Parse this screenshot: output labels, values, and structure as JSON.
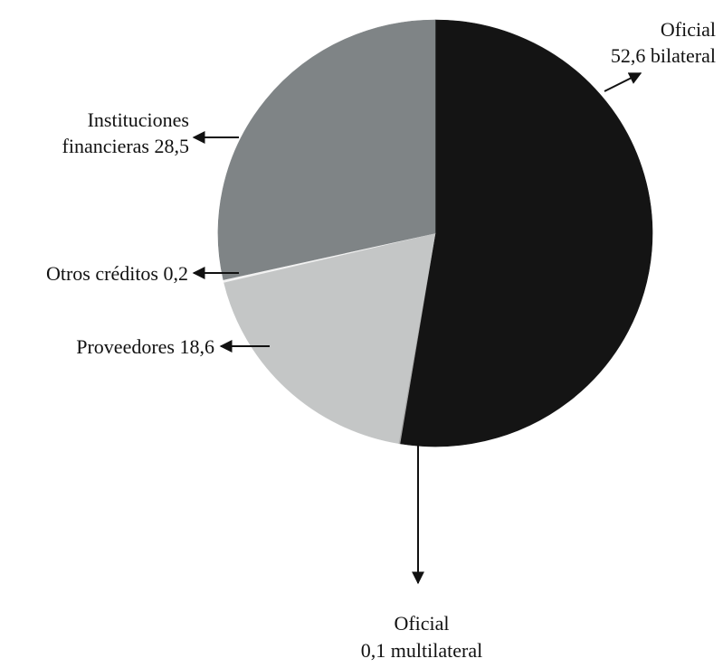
{
  "chart_data": {
    "type": "pie",
    "title": "",
    "slices": [
      {
        "label_lines": [
          "Oficial",
          "52,6 bilateral"
        ],
        "value": 52.6,
        "color": "#141414"
      },
      {
        "label_lines": [
          "Oficial",
          "0,1 multilateral"
        ],
        "value": 0.1,
        "color": "#a9a9a9"
      },
      {
        "label_lines": [
          "Proveedores 18,6"
        ],
        "value": 18.6,
        "color": "#c4c6c6"
      },
      {
        "label_lines": [
          "Otros créditos 0,2"
        ],
        "value": 0.2,
        "color": "#f2f2f2"
      },
      {
        "label_lines": [
          "Instituciones",
          "financieras 28,5"
        ],
        "value": 28.5,
        "color": "#7f8486"
      }
    ]
  }
}
